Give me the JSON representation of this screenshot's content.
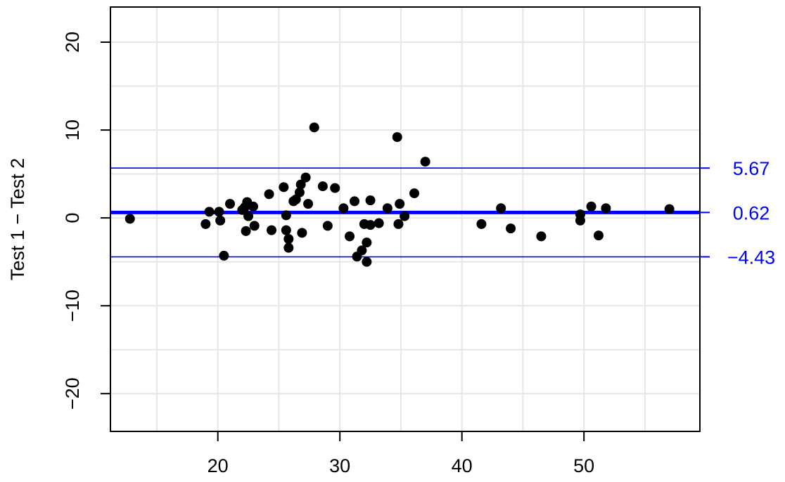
{
  "chart_data": {
    "type": "scatter",
    "title": "",
    "xlabel": "",
    "ylabel": "Test 1 − Test 2",
    "xlim": [
      11.2,
      59.5
    ],
    "ylim": [
      -24.3,
      24.0
    ],
    "x_ticks": [
      20,
      30,
      40,
      50
    ],
    "y_ticks": [
      -20,
      -10,
      0,
      10,
      20
    ],
    "x_tick_labels": [
      "20",
      "30",
      "40",
      "50"
    ],
    "y_tick_labels": [
      "−20",
      "−10",
      "0",
      "10",
      "20"
    ],
    "grid": true,
    "grid_x": [
      15,
      20,
      25,
      30,
      35,
      40,
      45,
      50,
      55
    ],
    "grid_y": [
      -20,
      -15,
      -10,
      -5,
      0,
      5,
      10,
      15,
      20
    ],
    "points": [
      [
        12.8,
        -0.1
      ],
      [
        19.0,
        -0.7
      ],
      [
        19.3,
        0.7
      ],
      [
        20.1,
        0.7
      ],
      [
        20.2,
        -0.3
      ],
      [
        20.5,
        -4.3
      ],
      [
        21.0,
        1.6
      ],
      [
        22.0,
        0.9
      ],
      [
        22.2,
        1.2
      ],
      [
        22.4,
        1.8
      ],
      [
        22.3,
        -1.5
      ],
      [
        22.5,
        0.2
      ],
      [
        22.9,
        1.3
      ],
      [
        23.0,
        -0.9
      ],
      [
        24.2,
        2.7
      ],
      [
        24.4,
        -1.4
      ],
      [
        25.4,
        3.5
      ],
      [
        25.6,
        0.3
      ],
      [
        25.6,
        -1.4
      ],
      [
        25.8,
        -2.4
      ],
      [
        25.8,
        -3.4
      ],
      [
        26.2,
        1.9
      ],
      [
        26.4,
        2.1
      ],
      [
        26.7,
        2.9
      ],
      [
        26.8,
        3.8
      ],
      [
        26.9,
        -1.7
      ],
      [
        27.2,
        4.6
      ],
      [
        27.4,
        1.6
      ],
      [
        27.9,
        10.3
      ],
      [
        28.6,
        3.6
      ],
      [
        29.0,
        -0.9
      ],
      [
        29.6,
        3.4
      ],
      [
        30.3,
        1.1
      ],
      [
        30.8,
        -2.1
      ],
      [
        31.2,
        1.9
      ],
      [
        31.4,
        -4.4
      ],
      [
        31.8,
        -3.7
      ],
      [
        32.0,
        -0.7
      ],
      [
        32.2,
        -2.8
      ],
      [
        32.2,
        -5.0
      ],
      [
        32.5,
        2.0
      ],
      [
        32.5,
        -0.8
      ],
      [
        33.2,
        -0.6
      ],
      [
        33.9,
        1.1
      ],
      [
        34.7,
        9.2
      ],
      [
        34.8,
        -0.7
      ],
      [
        34.9,
        1.6
      ],
      [
        35.3,
        0.2
      ],
      [
        36.1,
        2.8
      ],
      [
        37.0,
        6.4
      ],
      [
        41.6,
        -0.7
      ],
      [
        43.2,
        1.1
      ],
      [
        44.0,
        -1.2
      ],
      [
        46.5,
        -2.1
      ],
      [
        49.7,
        0.4
      ],
      [
        49.7,
        -0.3
      ],
      [
        50.6,
        1.3
      ],
      [
        51.2,
        -2.0
      ],
      [
        51.8,
        1.1
      ],
      [
        57.0,
        1.0
      ]
    ],
    "reference_lines": [
      {
        "value": 5.67,
        "label": "5.67",
        "kind": "upper-limit"
      },
      {
        "value": 0.62,
        "label": "0.62",
        "kind": "mean"
      },
      {
        "value": -4.43,
        "label": "−4.43",
        "kind": "lower-limit"
      }
    ],
    "colors": {
      "points": "#000000",
      "reference": "#0000ff",
      "grid": "#e6e6e6",
      "frame": "#000000"
    }
  }
}
